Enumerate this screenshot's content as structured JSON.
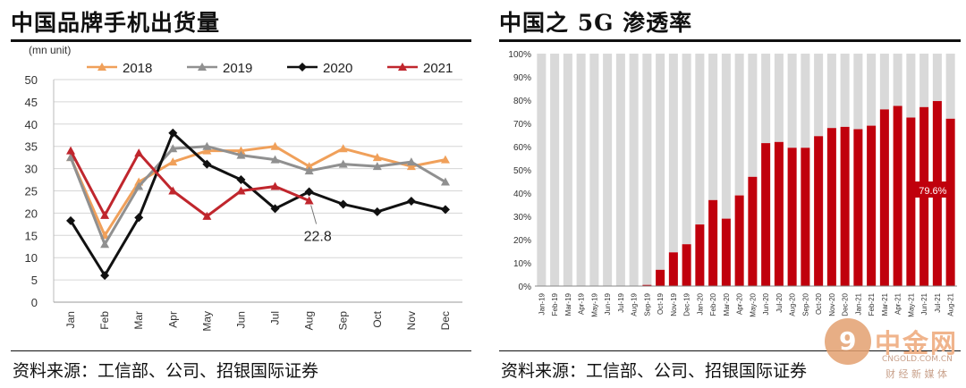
{
  "left_panel": {
    "title": "中国品牌手机出货量",
    "source": "资料来源：工信部、公司、招银国际证券"
  },
  "right_panel": {
    "title": "中国之 5G 渗透率",
    "source": "资料来源：工信部、公司、招银国际证券"
  },
  "watermark": {
    "logo_char": "9",
    "name": "中金网",
    "domain": "CNGOLD.COM.CN",
    "tagline": "财 经 新 媒 体"
  },
  "chart_data": [
    {
      "type": "line",
      "unit_label": "(mn unit)",
      "categories": [
        "Jan",
        "Feb",
        "Mar",
        "Apr",
        "May",
        "Jun",
        "Jul",
        "Aug",
        "Sep",
        "Oct",
        "Nov",
        "Dec"
      ],
      "ylim": [
        0,
        50
      ],
      "yticks": [
        0,
        5,
        10,
        15,
        20,
        25,
        30,
        35,
        40,
        45,
        50
      ],
      "grid": true,
      "legend": "top",
      "series": [
        {
          "name": "2018",
          "color": "#f0a05a",
          "marker": "triangle",
          "values": [
            32.5,
            15,
            27,
            31.5,
            34,
            34,
            35,
            30.5,
            34.5,
            32.5,
            30.5,
            32
          ]
        },
        {
          "name": "2019",
          "color": "#909090",
          "marker": "triangle",
          "values": [
            32.5,
            13,
            26,
            34.5,
            35,
            33,
            32,
            29.5,
            31,
            30.5,
            31.5,
            27
          ]
        },
        {
          "name": "2020",
          "color": "#111111",
          "marker": "diamond",
          "values": [
            18.3,
            6,
            19,
            38,
            31,
            27.5,
            21,
            24.8,
            22,
            20.3,
            22.7,
            20.8
          ]
        },
        {
          "name": "2021",
          "color": "#c0262d",
          "marker": "triangle",
          "values": [
            34,
            19.5,
            33.5,
            25,
            19.3,
            25,
            26,
            22.8,
            null,
            null,
            null,
            null
          ]
        }
      ],
      "annotation": {
        "text": "22.8",
        "category": "Aug"
      }
    },
    {
      "type": "bar",
      "stacked_to": 100,
      "categories": [
        "Jan-19",
        "Feb-19",
        "Mar-19",
        "Apr-19",
        "May-19",
        "Jun-19",
        "Jul-19",
        "Aug-19",
        "Sep-19",
        "Oct-19",
        "Nov-19",
        "Dec-19",
        "Jan-20",
        "Feb-20",
        "Mar-20",
        "Apr-20",
        "May-20",
        "Jun-20",
        "Jul-20",
        "Aug-20",
        "Sep-20",
        "Oct-20",
        "Nov-20",
        "Dec-20",
        "Jan-21",
        "Feb-21",
        "Mar-21",
        "Apr-21",
        "May-21",
        "Jun-21",
        "Jul-21",
        "Aug-21"
      ],
      "values": [
        0,
        0,
        0,
        0,
        0,
        0,
        0,
        0,
        0.5,
        7,
        14.5,
        18,
        26.5,
        37,
        29,
        39,
        47,
        61.5,
        62,
        59.5,
        59.5,
        64.5,
        68,
        68.5,
        67.5,
        69,
        76,
        77.5,
        72.5,
        77,
        79.6,
        72
      ],
      "ylim": [
        0,
        100
      ],
      "yticks": [
        "0%",
        "10%",
        "20%",
        "30%",
        "40%",
        "50%",
        "60%",
        "70%",
        "80%",
        "90%",
        "100%"
      ],
      "bar_color": "#c0000c",
      "remainder_color": "#d9d9d9",
      "annotation": {
        "text": "79.6%",
        "category": "Jul-21"
      }
    }
  ]
}
